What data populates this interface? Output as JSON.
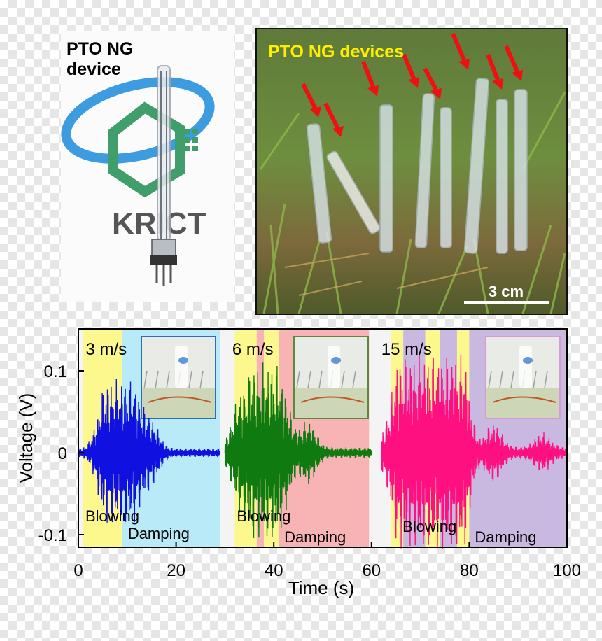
{
  "panel_a": {
    "label": "PTO NG device",
    "label_line1": "PTO NG",
    "label_line2": "device",
    "logo_text": "KRICT"
  },
  "panel_b": {
    "label": "PTO NG devices",
    "scale_bar": "3 cm"
  },
  "chart_data": {
    "type": "line",
    "title": "",
    "xlabel": "Time (s)",
    "ylabel": "Voltage (V)",
    "xlim": [
      0,
      100
    ],
    "ylim": [
      -0.12,
      0.14
    ],
    "xticks": [
      "0",
      "20",
      "40",
      "60",
      "80",
      "100"
    ],
    "yticks": [
      "0.1",
      "0",
      "-0.1"
    ],
    "grid": false,
    "segments": [
      {
        "speed_label": "3 m/s",
        "x_start": 0,
        "x_end": 29,
        "color": "#1010e0",
        "peak_amplitude": 0.09,
        "regions": [
          {
            "label": "Blowing",
            "x_start": 1,
            "x_end": 9,
            "color": "#fcf88e"
          },
          {
            "label": "Damping",
            "x_start": 9,
            "x_end": 29,
            "color": "#b8ebf7"
          }
        ]
      },
      {
        "speed_label": "6 m/s",
        "x_start": 30,
        "x_end": 60,
        "color": "#0f7a0f",
        "peak_amplitude": 0.11,
        "regions": [
          {
            "label": "Blowing",
            "x_start": 32,
            "x_end": 36.5,
            "color": "#fcf88e"
          },
          {
            "label": "",
            "x_start": 36.5,
            "x_end": 38,
            "color": "#f8b4b4"
          },
          {
            "label": "",
            "x_start": 38,
            "x_end": 41,
            "color": "#fcf88e"
          },
          {
            "label": "Damping",
            "x_start": 41,
            "x_end": 59.5,
            "color": "#f8b4b4"
          }
        ]
      },
      {
        "speed_label": "15 m/s",
        "x_start": 62,
        "x_end": 100,
        "color": "#ff1080",
        "peak_amplitude": 0.12,
        "regions": [
          {
            "label": "",
            "x_start": 64,
            "x_end": 66.5,
            "color": "#fcf88e"
          },
          {
            "label": "Blowing",
            "x_start": 66.5,
            "x_end": 71,
            "color": "#c9b8e0"
          },
          {
            "label": "",
            "x_start": 71,
            "x_end": 74,
            "color": "#fcf88e"
          },
          {
            "label": "",
            "x_start": 74,
            "x_end": 77.5,
            "color": "#c9b8e0"
          },
          {
            "label": "",
            "x_start": 77.5,
            "x_end": 80,
            "color": "#fcf88e"
          },
          {
            "label": "Damping",
            "x_start": 80,
            "x_end": 100,
            "color": "#c9b8e0"
          }
        ]
      }
    ]
  }
}
